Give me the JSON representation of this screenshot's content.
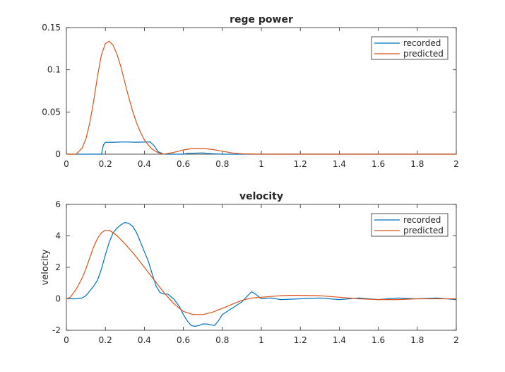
{
  "chart_data": [
    {
      "type": "line",
      "title": "rege power",
      "xlabel": "",
      "ylabel": "",
      "xlim": [
        0,
        2
      ],
      "ylim": [
        0,
        0.15
      ],
      "xticks": [
        "0",
        "0.2",
        "0.4",
        "0.6",
        "0.8",
        "1",
        "1.2",
        "1.4",
        "1.6",
        "1.8",
        "2"
      ],
      "yticks": [
        "0",
        "0.05",
        "0.1",
        "0.15"
      ],
      "grid": false,
      "legend": "top-right",
      "series": [
        {
          "name": "recorded",
          "color": "#0072BD",
          "x": [
            0,
            0.18,
            0.19,
            0.2,
            0.25,
            0.3,
            0.35,
            0.4,
            0.43,
            0.45,
            0.47,
            0.5,
            0.55,
            0.6,
            0.62,
            0.65,
            0.7,
            0.72,
            0.75,
            0.8,
            2
          ],
          "y": [
            0,
            0,
            0.011,
            0.014,
            0.0142,
            0.0145,
            0.0142,
            0.0143,
            0.0145,
            0.01,
            0.003,
            0,
            0,
            0,
            0.001,
            0.0012,
            0.0015,
            0.001,
            0.0005,
            0,
            0
          ]
        },
        {
          "name": "predicted",
          "color": "#D95319",
          "x": [
            0,
            0.05,
            0.08,
            0.1,
            0.12,
            0.14,
            0.16,
            0.18,
            0.2,
            0.22,
            0.24,
            0.26,
            0.28,
            0.3,
            0.32,
            0.34,
            0.36,
            0.38,
            0.4,
            0.42,
            0.44,
            0.46,
            0.48,
            0.5,
            0.55,
            0.6,
            0.65,
            0.7,
            0.75,
            0.8,
            0.85,
            0.9,
            1,
            2
          ],
          "y": [
            0,
            0,
            0.007,
            0.018,
            0.037,
            0.063,
            0.093,
            0.118,
            0.131,
            0.134,
            0.129,
            0.118,
            0.103,
            0.085,
            0.067,
            0.051,
            0.037,
            0.026,
            0.017,
            0.011,
            0.006,
            0.003,
            0.001,
            0,
            0.002,
            0.005,
            0.0068,
            0.0068,
            0.0055,
            0.0035,
            0.0015,
            0.0004,
            0,
            0
          ]
        }
      ]
    },
    {
      "type": "line",
      "title": "velocity",
      "xlabel": "",
      "ylabel": "velocity",
      "xlim": [
        0,
        2
      ],
      "ylim": [
        -2,
        6
      ],
      "xticks": [
        "0",
        "0.2",
        "0.4",
        "0.6",
        "0.8",
        "1",
        "1.2",
        "1.4",
        "1.6",
        "1.8",
        "2"
      ],
      "yticks": [
        "-2",
        "0",
        "2",
        "4",
        "6"
      ],
      "grid": false,
      "legend": "top-right",
      "series": [
        {
          "name": "recorded",
          "color": "#0072BD",
          "x": [
            0,
            0.05,
            0.08,
            0.1,
            0.12,
            0.14,
            0.16,
            0.18,
            0.2,
            0.22,
            0.24,
            0.26,
            0.28,
            0.3,
            0.32,
            0.34,
            0.36,
            0.38,
            0.4,
            0.42,
            0.44,
            0.46,
            0.48,
            0.5,
            0.52,
            0.55,
            0.58,
            0.6,
            0.62,
            0.64,
            0.66,
            0.68,
            0.7,
            0.72,
            0.74,
            0.76,
            0.78,
            0.8,
            0.85,
            0.9,
            0.93,
            0.95,
            0.97,
            1,
            1.05,
            1.1,
            1.2,
            1.3,
            1.4,
            1.5,
            1.6,
            1.7,
            1.8,
            1.9,
            2
          ],
          "y": [
            0,
            0,
            0.05,
            0.2,
            0.5,
            0.8,
            1.2,
            1.9,
            2.8,
            3.6,
            4.2,
            4.5,
            4.7,
            4.85,
            4.8,
            4.6,
            4.2,
            3.6,
            3.0,
            2.4,
            1.6,
            0.8,
            0.4,
            0.3,
            0.3,
            0.0,
            -0.5,
            -1.0,
            -1.4,
            -1.7,
            -1.75,
            -1.7,
            -1.6,
            -1.6,
            -1.65,
            -1.7,
            -1.4,
            -1.0,
            -0.6,
            -0.2,
            0.2,
            0.45,
            0.3,
            0.0,
            0.05,
            -0.05,
            0.0,
            0.05,
            -0.05,
            0.05,
            -0.05,
            0.05,
            0.0,
            0.05,
            -0.05
          ]
        },
        {
          "name": "predicted",
          "color": "#D95319",
          "x": [
            0,
            0.02,
            0.05,
            0.08,
            0.1,
            0.12,
            0.14,
            0.16,
            0.18,
            0.2,
            0.22,
            0.24,
            0.26,
            0.3,
            0.35,
            0.4,
            0.45,
            0.5,
            0.55,
            0.6,
            0.65,
            0.7,
            0.75,
            0.8,
            0.85,
            0.9,
            0.95,
            1,
            1.05,
            1.1,
            1.15,
            1.2,
            1.3,
            1.4,
            1.5,
            1.6,
            1.7,
            1.8,
            1.9,
            2
          ],
          "y": [
            0,
            0.1,
            0.6,
            1.3,
            1.9,
            2.6,
            3.3,
            3.85,
            4.2,
            4.35,
            4.35,
            4.2,
            4.0,
            3.5,
            2.8,
            2.0,
            1.2,
            0.4,
            -0.3,
            -0.8,
            -1.0,
            -1.0,
            -0.85,
            -0.6,
            -0.35,
            -0.1,
            0.05,
            0.1,
            0.15,
            0.2,
            0.22,
            0.22,
            0.2,
            0.1,
            0.0,
            -0.05,
            -0.05,
            0.0,
            0.0,
            0.0
          ]
        }
      ]
    }
  ]
}
